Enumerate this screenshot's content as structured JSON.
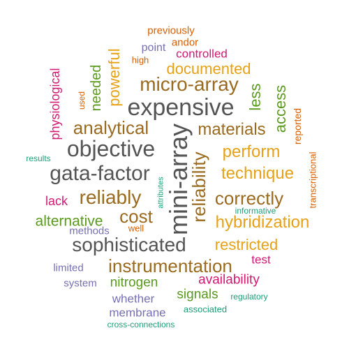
{
  "colors": {
    "dark_gray": "#545454",
    "brown": "#9a6a1f",
    "gold": "#e6a117",
    "magenta": "#d11a72",
    "green": "#5a9a1e",
    "teal": "#1b9e77",
    "purple": "#7570b3",
    "orange_red": "#d95f02"
  },
  "words": [
    "previously",
    "andor",
    "point",
    "controlled",
    "high",
    "documented",
    "physiological",
    "used",
    "needed",
    "powerful",
    "micro-array",
    "less",
    "expensive",
    "access",
    "reported",
    "analytical",
    "materials",
    "objective",
    "perform",
    "results",
    "mini-array",
    "reliability",
    "transcriptional",
    "gata-factor",
    "technique",
    "reliably",
    "correctly",
    "lack",
    "attributes",
    "cost",
    "informative",
    "alternative",
    "hybridization",
    "methods",
    "well",
    "sophisticated",
    "restricted",
    "instrumentation",
    "test",
    "limited",
    "availability",
    "system",
    "nitrogen",
    "signals",
    "regulatory",
    "whether",
    "associated",
    "membrane",
    "cross-connections"
  ]
}
